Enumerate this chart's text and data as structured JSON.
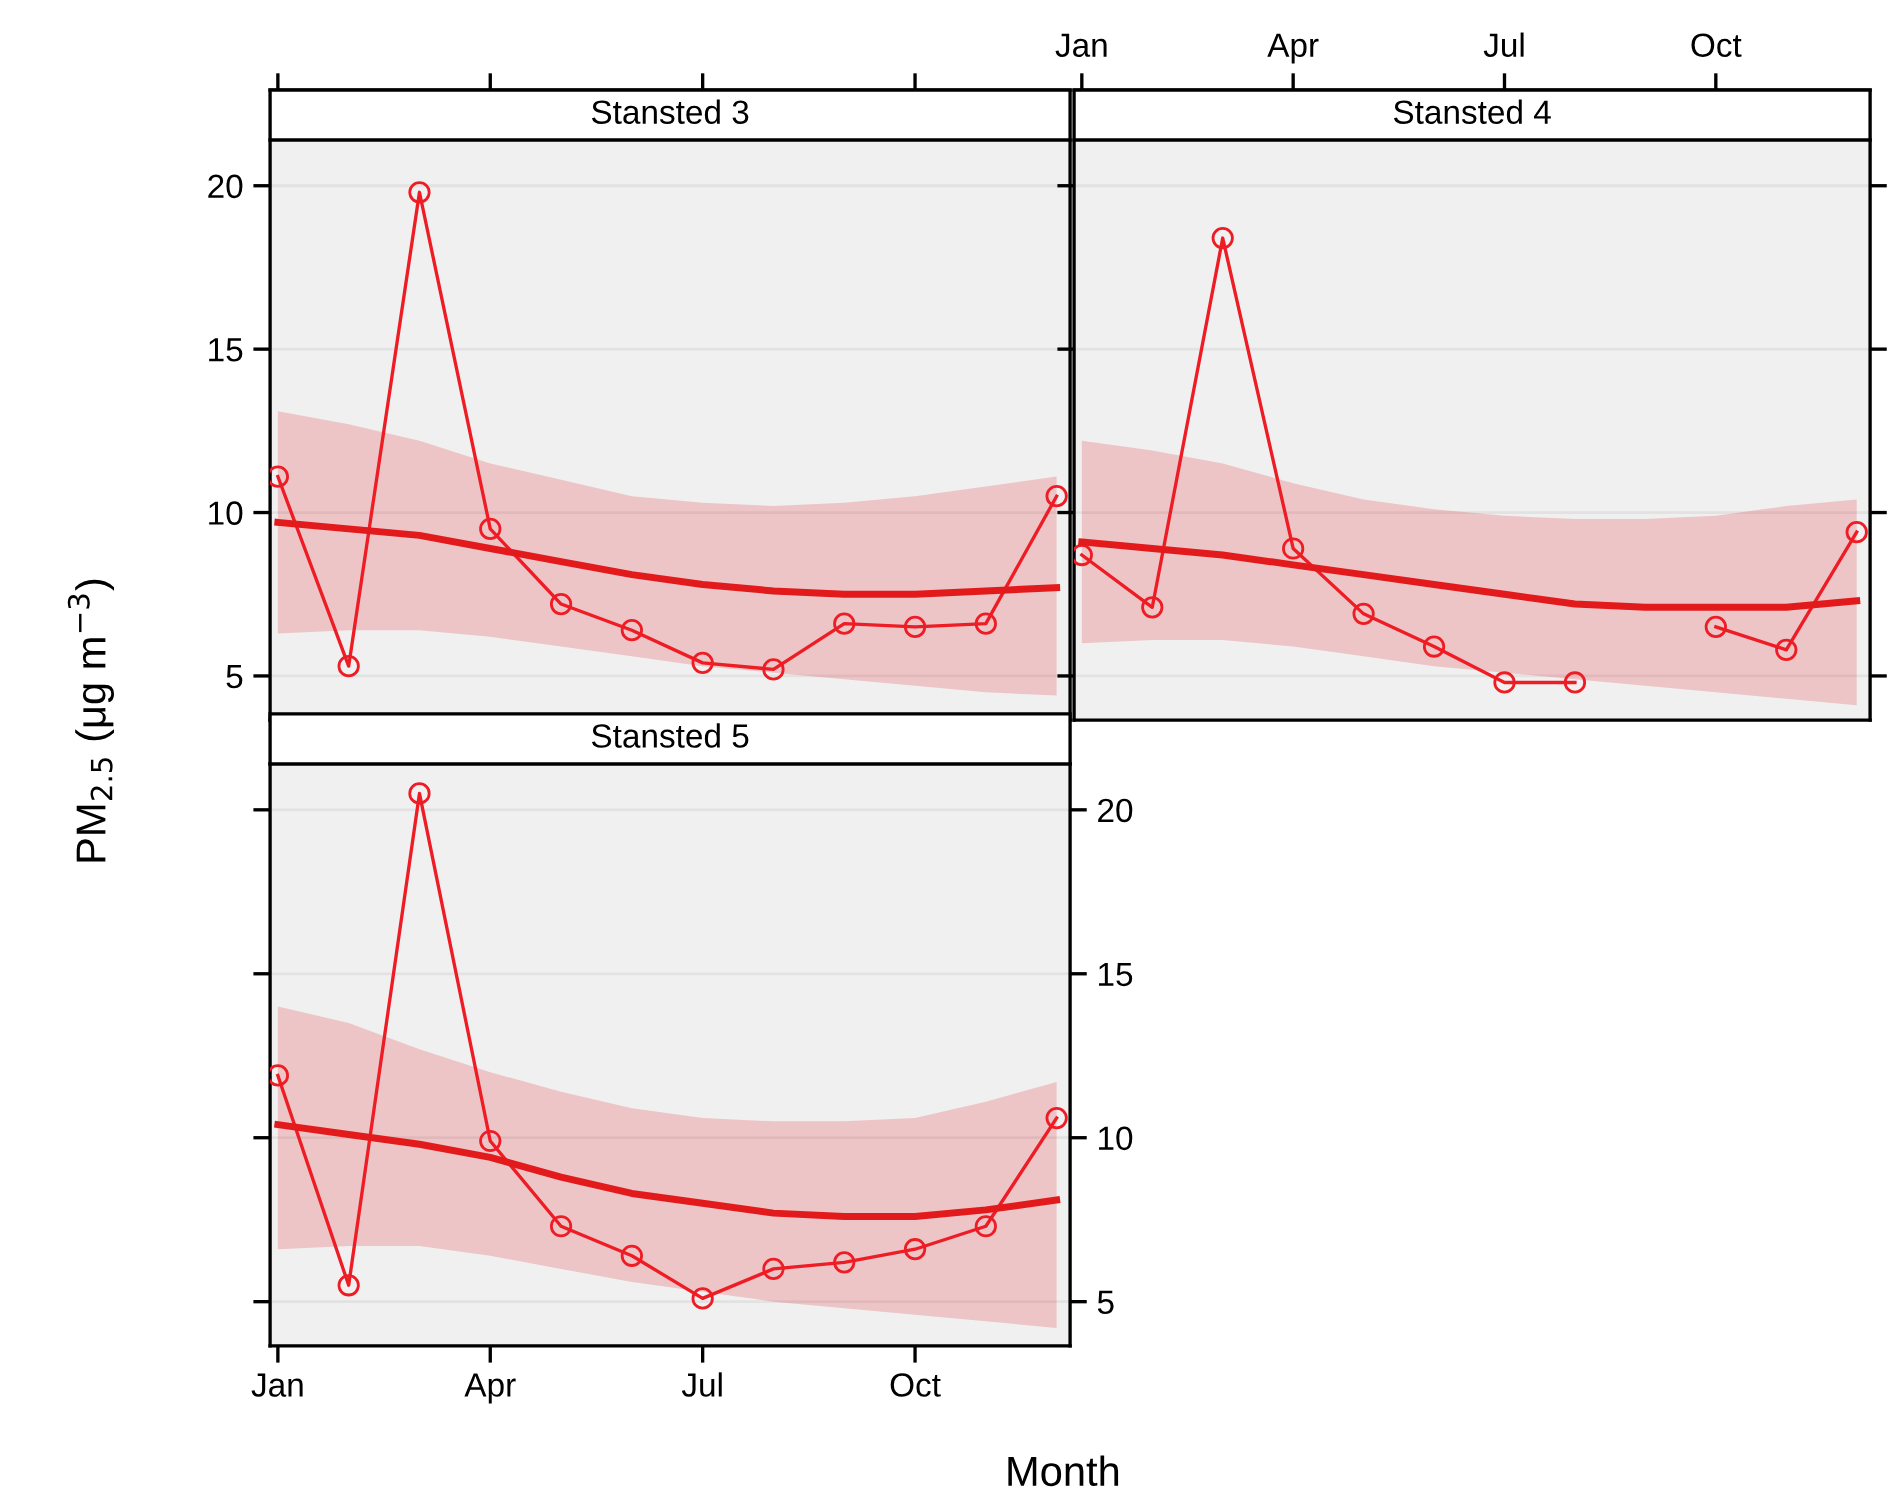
{
  "chart_data": [
    {
      "type": "line",
      "title": "Stansted 3",
      "ylabel": "PM$_{2.5}$ (μg m$^{−3}$)",
      "categories": [
        null,
        null,
        null,
        null,
        null,
        null,
        null,
        null,
        null,
        null,
        null,
        null
      ],
      "ylim": [
        3.65,
        21.4
      ],
      "yticks": [
        5,
        10,
        15,
        20
      ],
      "tick_labels": "y",
      "grid": "y",
      "series": [
        {
          "color": "#ee1c24",
          "marker": "circle",
          "line_style": "solid",
          "values": [
            11.1,
            5.3,
            19.8,
            9.5,
            7.2,
            6.4,
            5.4,
            5.2,
            6.6,
            6.5,
            6.6,
            10.5
          ]
        },
        {
          "color": "#e31a1c",
          "marker": "none",
          "line_style": "solid",
          "values": [
            9.7,
            9.5,
            9.3,
            8.9,
            8.5,
            8.1,
            7.8,
            7.6,
            7.5,
            7.5,
            7.6,
            7.7
          ],
          "upper": [
            13.1,
            12.7,
            12.2,
            11.5,
            11.0,
            10.5,
            10.3,
            10.2,
            10.3,
            10.5,
            10.8,
            11.1
          ],
          "lower": [
            6.3,
            6.4,
            6.4,
            6.2,
            5.9,
            5.6,
            5.3,
            5.1,
            4.9,
            4.7,
            4.5,
            4.4
          ]
        }
      ]
    },
    {
      "type": "line",
      "title": "Stansted 4",
      "categories": [
        "Jan",
        null,
        null,
        "Apr",
        null,
        null,
        "Jul",
        null,
        null,
        "Oct",
        null,
        null
      ],
      "ylim": [
        3.65,
        21.4
      ],
      "yticks": [
        {
          "value": 5,
          "label": null
        },
        {
          "value": 10,
          "label": null
        },
        {
          "value": 15,
          "label": null
        },
        {
          "value": 20,
          "label": null
        }
      ],
      "tick_labels": "x",
      "grid": "y",
      "series": [
        {
          "color": "#ee1c24",
          "marker": "circle",
          "line_style": "solid",
          "values": [
            8.7,
            7.1,
            18.4,
            8.9,
            6.9,
            5.9,
            4.8,
            4.8,
            null,
            6.5,
            5.8,
            9.4
          ]
        },
        {
          "color": "#e31a1c",
          "marker": "none",
          "line_style": "solid",
          "values": [
            9.1,
            8.9,
            8.7,
            8.4,
            8.1,
            7.8,
            7.5,
            7.2,
            7.1,
            7.1,
            7.1,
            7.3
          ],
          "upper": [
            12.2,
            11.9,
            11.5,
            10.9,
            10.4,
            10.1,
            9.9,
            9.8,
            9.8,
            9.9,
            10.2,
            10.4
          ],
          "lower": [
            6.0,
            6.1,
            6.1,
            5.9,
            5.6,
            5.3,
            5.1,
            4.9,
            4.7,
            4.5,
            4.3,
            4.1
          ]
        }
      ]
    },
    {
      "type": "line",
      "title": "Stansted 5",
      "xlabel": "Month",
      "categories": [
        "Jan",
        null,
        null,
        "Apr",
        null,
        null,
        "Jul",
        null,
        null,
        "Oct",
        null,
        null
      ],
      "ylim": [
        3.65,
        21.4
      ],
      "yticks": [
        5,
        10,
        15,
        20
      ],
      "grid": "y",
      "series": [
        {
          "color": "#ee1c24",
          "marker": "circle",
          "line_style": "solid",
          "values": [
            11.9,
            5.5,
            20.5,
            9.9,
            7.3,
            6.4,
            5.1,
            6.0,
            6.2,
            6.6,
            7.3,
            10.6
          ]
        },
        {
          "color": "#e31a1c",
          "marker": "none",
          "line_style": "solid",
          "values": [
            10.4,
            10.1,
            9.8,
            9.4,
            8.8,
            8.3,
            8.0,
            7.7,
            7.6,
            7.6,
            7.8,
            8.1
          ],
          "upper": [
            14.0,
            13.5,
            12.7,
            12.0,
            11.4,
            10.9,
            10.6,
            10.5,
            10.5,
            10.6,
            11.1,
            11.7
          ],
          "lower": [
            6.6,
            6.7,
            6.7,
            6.4,
            6.0,
            5.6,
            5.3,
            5.0,
            4.8,
            4.6,
            4.4,
            4.2
          ]
        }
      ]
    }
  ]
}
